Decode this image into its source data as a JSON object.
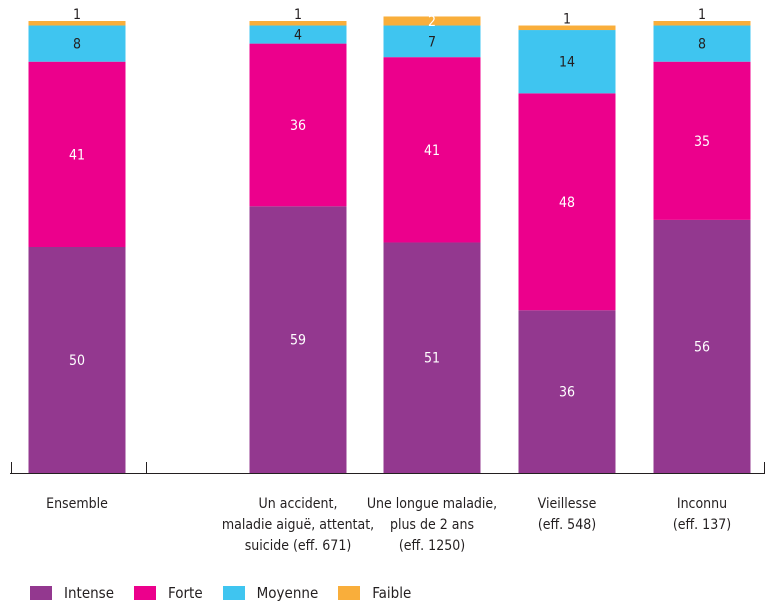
{
  "chart_data": {
    "type": "bar",
    "stacked": true,
    "categories": [
      [
        "Ensemble"
      ],
      [
        "Un accident,",
        "maladie aiguë, attentat,",
        "suicide (eff. 671)"
      ],
      [
        "Une longue maladie,",
        "plus de 2 ans",
        "(eff. 1250)"
      ],
      [
        "Vieillesse",
        "(eff. 548)"
      ],
      [
        "Inconnu",
        "(eff. 137)"
      ]
    ],
    "series": [
      {
        "name": "Intense",
        "color": "#93388f",
        "values": [
          50,
          59,
          51,
          36,
          56
        ]
      },
      {
        "name": "Forte",
        "color": "#ec008c",
        "values": [
          41,
          36,
          41,
          48,
          35
        ]
      },
      {
        "name": "Moyenne",
        "color": "#3fc5f0",
        "values": [
          8,
          4,
          7,
          14,
          8
        ]
      },
      {
        "name": "Faible",
        "color": "#f9ae3b",
        "values": [
          1,
          1,
          2,
          1,
          1
        ]
      }
    ],
    "ylim": [
      0,
      100
    ],
    "grid": false,
    "legend_position": "bottom-left"
  }
}
